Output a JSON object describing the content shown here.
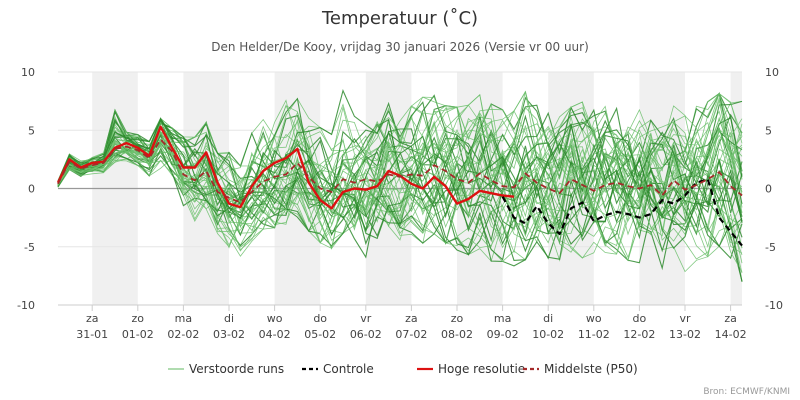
{
  "chart_data": {
    "type": "line",
    "title": "Temperatuur (˚C)",
    "subtitle": "Den Helder/De Kooy, vrijdag 30 januari 2026 (Versie vr 00 uur)",
    "source": "Bron: ECMWF/KNMI",
    "xlabel": "",
    "ylabel": "",
    "ylim": [
      -10,
      10
    ],
    "yticks": [
      10,
      5,
      0,
      -5,
      -10
    ],
    "x_unit": "hours since start of forecast (6-hour steps)",
    "x_range": [
      0,
      360
    ],
    "day_ticks": [
      {
        "day": "za",
        "date": "31-01",
        "x": 18
      },
      {
        "day": "zo",
        "date": "01-02",
        "x": 42
      },
      {
        "day": "ma",
        "date": "02-02",
        "x": 66
      },
      {
        "day": "di",
        "date": "03-02",
        "x": 90
      },
      {
        "day": "wo",
        "date": "04-02",
        "x": 114
      },
      {
        "day": "do",
        "date": "05-02",
        "x": 138
      },
      {
        "day": "vr",
        "date": "06-02",
        "x": 162
      },
      {
        "day": "za",
        "date": "07-02",
        "x": 186
      },
      {
        "day": "zo",
        "date": "08-02",
        "x": 210
      },
      {
        "day": "ma",
        "date": "09-02",
        "x": 234
      },
      {
        "day": "di",
        "date": "10-02",
        "x": 258
      },
      {
        "day": "wo",
        "date": "11-02",
        "x": 282
      },
      {
        "day": "do",
        "date": "12-02",
        "x": 306
      },
      {
        "day": "vr",
        "date": "13-02",
        "x": 330
      },
      {
        "day": "za",
        "date": "14-02",
        "x": 354
      }
    ],
    "shaded_days": [
      [
        18,
        42
      ],
      [
        66,
        90
      ],
      [
        114,
        138
      ],
      [
        162,
        186
      ],
      [
        210,
        234
      ],
      [
        258,
        282
      ],
      [
        306,
        330
      ],
      [
        354,
        360
      ]
    ],
    "legend": [
      {
        "label": "Verstoorde runs",
        "color": "#7bc47b",
        "dash": false
      },
      {
        "label": "Controle",
        "color": "#000000",
        "dash": true
      },
      {
        "label": "Hoge resolutie",
        "color": "#dd1111",
        "dash": false
      },
      {
        "label": "Middelste (P50)",
        "color": "#a52a2a",
        "dash": true
      }
    ],
    "series": [
      {
        "name": "Hoge resolutie",
        "color": "#dd1111",
        "x": [
          0,
          6,
          12,
          18,
          24,
          30,
          36,
          42,
          48,
          54,
          60,
          66,
          72,
          78,
          84,
          90,
          96,
          102,
          108,
          114,
          120,
          126,
          132,
          138,
          144,
          150,
          156,
          162,
          168,
          174,
          180,
          186,
          192,
          198,
          204,
          210,
          216,
          222,
          228,
          234,
          240
        ],
        "values": [
          0.5,
          2.5,
          1.8,
          2.2,
          2.3,
          3.5,
          3.9,
          3.5,
          2.8,
          5.3,
          3.5,
          1.8,
          1.8,
          3.1,
          0.5,
          -1.3,
          -1.6,
          0.2,
          1.5,
          2.2,
          2.6,
          3.4,
          0.5,
          -1.0,
          -1.7,
          -0.3,
          0.0,
          -0.1,
          0.2,
          1.5,
          1.1,
          0.4,
          0.0,
          1.0,
          0.2,
          -1.3,
          -0.9,
          -0.2,
          -0.4,
          -0.6,
          -0.7
        ]
      },
      {
        "name": "Controle",
        "color": "#000000",
        "x": [
          234,
          240,
          246,
          252,
          258,
          264,
          270,
          276,
          282,
          288,
          294,
          300,
          306,
          312,
          318,
          324,
          330,
          336,
          342,
          348,
          354,
          360
        ],
        "values": [
          -0.7,
          -2.5,
          -3.0,
          -1.5,
          -3.0,
          -3.9,
          -1.7,
          -1.2,
          -2.8,
          -2.3,
          -2.0,
          -2.2,
          -2.5,
          -2.2,
          -1.0,
          -1.3,
          -0.6,
          0.5,
          0.8,
          -2.5,
          -3.7,
          -4.9
        ]
      },
      {
        "name": "Middelste (P50)",
        "color": "#a52a2a",
        "x": [
          0,
          6,
          12,
          18,
          24,
          30,
          36,
          42,
          48,
          54,
          60,
          66,
          72,
          78,
          84,
          90,
          96,
          102,
          108,
          114,
          120,
          126,
          132,
          138,
          144,
          150,
          156,
          162,
          168,
          174,
          180,
          186,
          192,
          198,
          204,
          210,
          216,
          222,
          228,
          234,
          240,
          246,
          252,
          258,
          264,
          270,
          276,
          282,
          288,
          294,
          300,
          306,
          312,
          318,
          324,
          330,
          336,
          342,
          348,
          354,
          360
        ],
        "values": [
          0.4,
          2.3,
          1.7,
          2.0,
          2.2,
          3.4,
          3.6,
          3.3,
          2.6,
          4.2,
          3.2,
          1.2,
          0.7,
          1.5,
          -0.3,
          -0.8,
          -1.2,
          -0.3,
          0.6,
          1.0,
          1.2,
          2.2,
          1.0,
          0.0,
          -0.3,
          0.8,
          0.5,
          0.8,
          0.6,
          1.2,
          1.0,
          1.2,
          1.1,
          2.0,
          1.5,
          0.8,
          0.5,
          1.3,
          0.7,
          0.2,
          0.1,
          1.3,
          0.5,
          0.0,
          -0.4,
          0.8,
          0.3,
          -0.2,
          0.3,
          0.5,
          0.2,
          0.0,
          0.3,
          -0.6,
          0.7,
          -0.1,
          0.3,
          0.8,
          1.4,
          0.2,
          -0.6
        ]
      }
    ],
    "ensemble": {
      "name": "Verstoorde runs",
      "color": "#3d9a3d",
      "member_count": 50,
      "mean_values": [
        0.4,
        2.3,
        1.7,
        2.0,
        2.2,
        3.4,
        3.6,
        3.3,
        2.6,
        4.2,
        3.2,
        1.2,
        0.7,
        1.5,
        -0.3,
        -0.8,
        -1.2,
        -0.3,
        0.6,
        1.0,
        1.2,
        2.2,
        1.0,
        0.0,
        -0.3,
        0.8,
        0.5,
        0.8,
        0.6,
        1.2,
        1.0,
        1.2,
        1.1,
        2.0,
        1.5,
        0.8,
        0.5,
        1.3,
        0.7,
        0.2,
        0.1,
        1.3,
        0.5,
        0.0,
        -0.4,
        0.8,
        0.3,
        -0.2,
        0.3,
        0.5,
        0.2,
        0.0,
        0.3,
        -0.6,
        0.7,
        -0.1,
        0.3,
        0.8,
        1.4,
        0.2,
        -0.6
      ],
      "min_values": [
        0.1,
        1.6,
        1.0,
        1.2,
        1.3,
        2.2,
        2.3,
        1.9,
        1.0,
        1.6,
        0.4,
        -1.8,
        -3.0,
        -2.9,
        -4.5,
        -5.3,
        -6.2,
        -4.8,
        -3.7,
        -3.6,
        -3.3,
        -2.7,
        -3.9,
        -4.9,
        -5.4,
        -4.1,
        -4.6,
        -6.8,
        -4.7,
        -4.5,
        -4.7,
        -4.2,
        -5.0,
        -4.2,
        -5.0,
        -5.6,
        -6.0,
        -5.5,
        -6.6,
        -6.6,
        -7.0,
        -6.5,
        -5.5,
        -6.3,
        -6.8,
        -5.8,
        -6.3,
        -5.8,
        -6.4,
        -6.2,
        -6.5,
        -6.7,
        -6.3,
        -7.3,
        -6.2,
        -7.5,
        -6.5,
        -6.2,
        -5.3,
        -6.3,
        -8.4
      ],
      "max_values": [
        0.7,
        3.0,
        2.4,
        2.8,
        3.1,
        6.9,
        4.9,
        4.7,
        4.1,
        6.1,
        5.3,
        4.6,
        4.6,
        5.9,
        3.2,
        3.3,
        2.1,
        5.0,
        6.2,
        6.6,
        7.9,
        8.0,
        6.3,
        5.5,
        4.9,
        8.8,
        6.5,
        5.7,
        6.0,
        7.7,
        6.6,
        7.4,
        8.2,
        8.3,
        7.4,
        7.3,
        7.5,
        8.4,
        7.6,
        7.1,
        7.0,
        8.7,
        7.5,
        6.8,
        6.5,
        7.3,
        7.8,
        7.9,
        7.4,
        7.2,
        6.8,
        7.1,
        7.4,
        6.1,
        7.8,
        6.6,
        7.5,
        7.8,
        8.5,
        7.8,
        7.9
      ]
    }
  }
}
